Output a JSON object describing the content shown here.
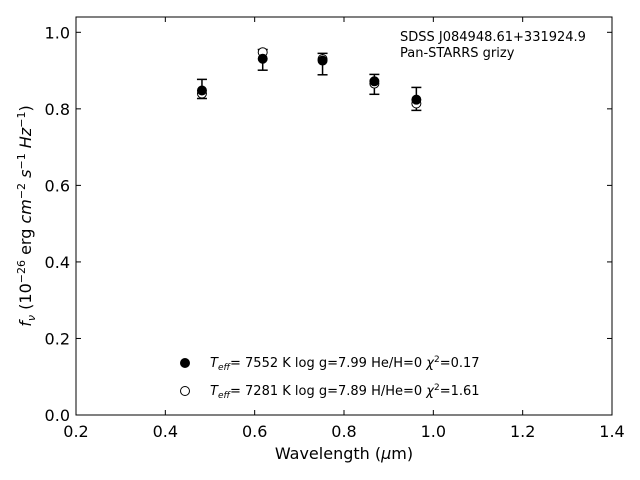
{
  "chart_data": {
    "type": "scatter",
    "annotation_lines": [
      "SDSS J084948.61+331924.9",
      "Pan-STARRS grizy"
    ],
    "xlabel": "Wavelength (μm)",
    "ylabel": "f_ν (10^-26 erg cm^-2 s^-1 Hz^-1)",
    "xlim": [
      0.2,
      1.4
    ],
    "ylim": [
      0.0,
      1.04
    ],
    "xticks": [
      0.2,
      0.4,
      0.6,
      0.8,
      1.0,
      1.2,
      1.4
    ],
    "yticks": [
      0.0,
      0.2,
      0.4,
      0.6,
      0.8,
      1.0
    ],
    "grid": false,
    "legend_position": "bottom-center",
    "observed": {
      "x": [
        0.482,
        0.618,
        0.752,
        0.868,
        0.962
      ],
      "y": [
        0.852,
        0.928,
        0.917,
        0.864,
        0.826
      ],
      "yerr": [
        0.025,
        0.027,
        0.028,
        0.026,
        0.03
      ]
    },
    "series": [
      {
        "name": "T_eff= 7552 K log g=7.99 He/H=0 χ²=0.17",
        "marker": "filled-circle",
        "x": [
          0.482,
          0.618,
          0.752,
          0.868,
          0.962
        ],
        "y": [
          0.848,
          0.931,
          0.926,
          0.872,
          0.824
        ]
      },
      {
        "name": "T_eff= 7281 K log g=7.89 H/He=0 χ²=1.61",
        "marker": "open-circle",
        "x": [
          0.482,
          0.618,
          0.752,
          0.868,
          0.962
        ],
        "y": [
          0.84,
          0.948,
          0.93,
          0.866,
          0.814
        ]
      }
    ]
  }
}
